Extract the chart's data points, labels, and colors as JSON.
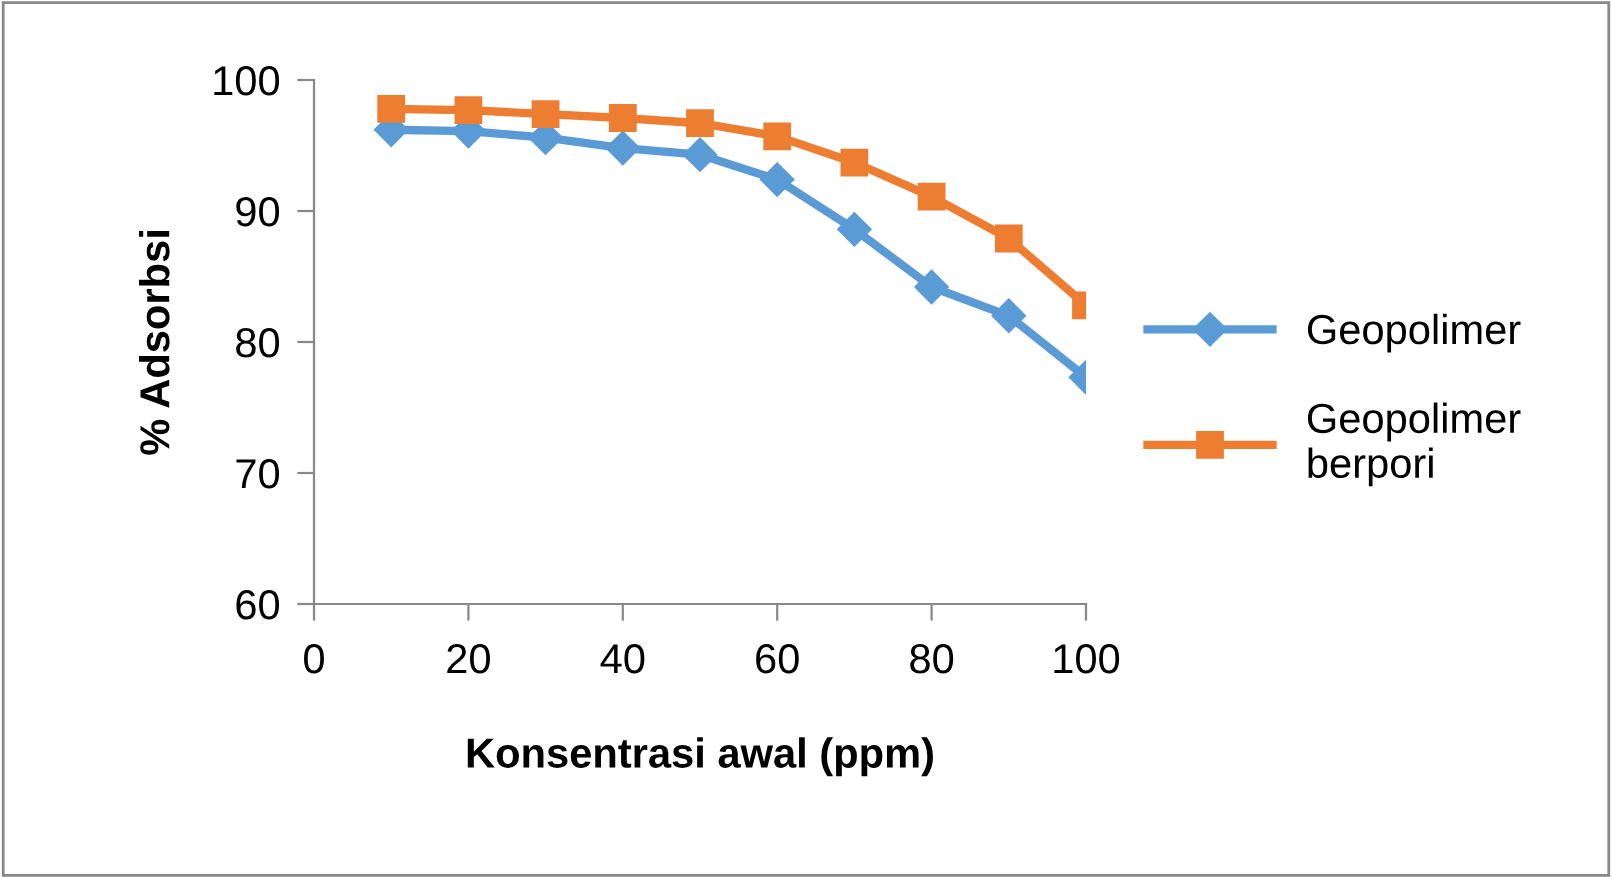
{
  "chart_data": {
    "type": "line",
    "xlabel": "Konsentrasi awal (ppm)",
    "ylabel": "% Adsorbsi",
    "x": [
      10,
      20,
      30,
      40,
      50,
      60,
      70,
      80,
      90,
      100
    ],
    "series": [
      {
        "name": "Geopolimer",
        "color": "#5b9bd5",
        "marker": "diamond",
        "values": [
          96.2,
          96.1,
          95.6,
          94.8,
          94.3,
          92.4,
          88.6,
          84.2,
          82.0,
          77.3
        ]
      },
      {
        "name": "Geopolimer berpori",
        "color": "#ed7d31",
        "marker": "square",
        "values": [
          97.8,
          97.7,
          97.4,
          97.1,
          96.7,
          95.7,
          93.7,
          91.1,
          87.9,
          82.8
        ]
      }
    ],
    "xlim": [
      0,
      100
    ],
    "xticks": [
      0,
      20,
      40,
      60,
      80,
      100
    ],
    "ylim": [
      60,
      100
    ],
    "yticks": [
      60,
      70,
      80,
      90,
      100
    ],
    "grid": false,
    "legend": "right",
    "line_style": "solid"
  }
}
